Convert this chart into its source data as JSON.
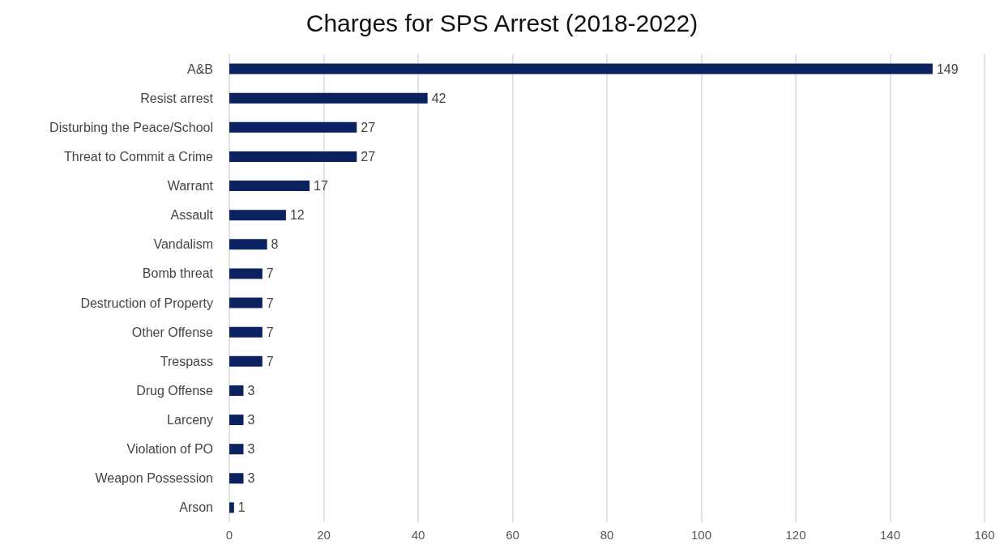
{
  "chart_data": {
    "type": "bar",
    "orientation": "horizontal",
    "title": "Charges for SPS Arrest (2018-2022)",
    "categories": [
      "A&B",
      "Resist arrest",
      "Disturbing the Peace/School",
      "Threat to Commit a Crime",
      "Warrant",
      "Assault",
      "Vandalism",
      "Bomb threat",
      "Destruction of Property",
      "Other Offense",
      "Trespass",
      "Drug Offense",
      "Larceny",
      "Violation of PO",
      "Weapon Possession",
      "Arson"
    ],
    "values": [
      149,
      42,
      27,
      27,
      17,
      12,
      8,
      7,
      7,
      7,
      7,
      3,
      3,
      3,
      3,
      1
    ],
    "color": "#0b2260",
    "xlim": [
      0,
      160
    ],
    "xticks": [
      0,
      20,
      40,
      60,
      80,
      100,
      120,
      140,
      160
    ],
    "grid": "x",
    "data_labels": true
  }
}
